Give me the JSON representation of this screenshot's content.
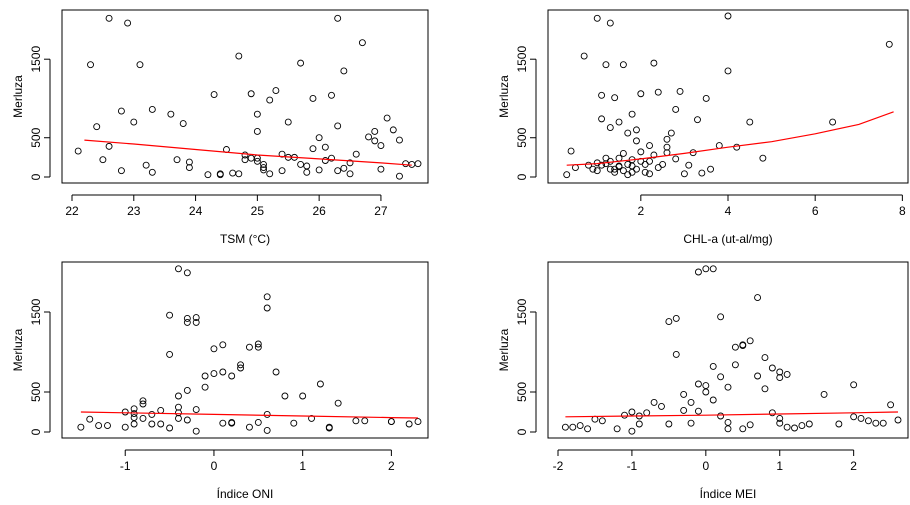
{
  "chart_data": [
    {
      "type": "scatter",
      "xlabel": "TSM (°C)",
      "ylabel": "Merluza",
      "xlim": [
        22,
        27.6
      ],
      "ylim": [
        0,
        2050
      ],
      "xticks": [
        "22",
        "23",
        "24",
        "25",
        "26",
        "27"
      ],
      "yticks": [
        "0",
        "500",
        "1500"
      ],
      "fit_color": "#ff0000",
      "fit": {
        "x": [
          22.2,
          23,
          24,
          25,
          26,
          27,
          27.5
        ],
        "y": [
          470,
          420,
          350,
          280,
          230,
          180,
          150
        ]
      },
      "x": [
        22.1,
        22.3,
        22.4,
        22.5,
        22.6,
        22.6,
        22.8,
        22.8,
        22.9,
        23.0,
        23.1,
        23.2,
        23.3,
        23.3,
        23.6,
        23.7,
        23.8,
        23.9,
        23.9,
        24.2,
        24.3,
        24.4,
        24.4,
        24.5,
        24.6,
        24.7,
        24.7,
        24.8,
        24.8,
        24.9,
        24.9,
        25.0,
        25.0,
        25.0,
        25.0,
        25.1,
        25.1,
        25.1,
        25.2,
        25.2,
        25.3,
        25.4,
        25.4,
        25.5,
        25.6,
        25.7,
        25.7,
        25.8,
        25.8,
        25.9,
        25.9,
        26.0,
        26.0,
        26.1,
        26.1,
        26.2,
        26.2,
        26.3,
        26.3,
        26.3,
        26.4,
        26.4,
        26.5,
        26.5,
        26.6,
        26.7,
        26.8,
        26.9,
        27.0,
        27.0,
        27.1,
        27.2,
        27.3,
        27.3,
        27.4,
        27.5,
        27.6,
        26.9,
        25.5
      ],
      "y": [
        330,
        1430,
        640,
        220,
        390,
        2020,
        80,
        840,
        1960,
        700,
        1430,
        150,
        860,
        60,
        800,
        220,
        680,
        190,
        120,
        30,
        1050,
        40,
        30,
        350,
        50,
        40,
        1540,
        280,
        220,
        1060,
        240,
        800,
        580,
        240,
        200,
        160,
        90,
        120,
        980,
        40,
        1100,
        80,
        290,
        700,
        250,
        1450,
        160,
        140,
        60,
        1000,
        360,
        90,
        500,
        210,
        380,
        1040,
        240,
        80,
        650,
        2020,
        110,
        1350,
        40,
        180,
        290,
        1710,
        510,
        580,
        100,
        400,
        750,
        600,
        10,
        470,
        170,
        160,
        170,
        460,
        250
      ]
    },
    {
      "type": "scatter",
      "xlabel": "CHL-a (ut-al/mg)",
      "ylabel": "Merluza",
      "xlim": [
        0.1,
        7.9
      ],
      "ylim": [
        0,
        2050
      ],
      "xticks": [
        "2",
        "4",
        "6",
        "8"
      ],
      "yticks": [
        "0",
        "500",
        "1500"
      ],
      "fit_color": "#ff0000",
      "fit": {
        "x": [
          0.3,
          1,
          2,
          3,
          4,
          5,
          6,
          7,
          7.8
        ],
        "y": [
          150,
          170,
          230,
          300,
          380,
          450,
          550,
          670,
          830
        ]
      },
      "x": [
        0.3,
        0.4,
        0.5,
        0.7,
        0.8,
        0.9,
        1.0,
        1.0,
        1.1,
        1.1,
        1.1,
        1.2,
        1.2,
        1.3,
        1.3,
        1.3,
        1.4,
        1.4,
        1.4,
        1.5,
        1.5,
        1.5,
        1.6,
        1.6,
        1.6,
        1.7,
        1.7,
        1.7,
        1.8,
        1.8,
        1.8,
        1.9,
        1.9,
        1.9,
        2.0,
        2.0,
        2.0,
        2.1,
        2.1,
        2.2,
        2.2,
        2.3,
        2.3,
        2.4,
        2.4,
        2.5,
        2.6,
        2.6,
        2.7,
        2.8,
        2.8,
        2.9,
        3.0,
        3.1,
        3.2,
        3.3,
        3.5,
        3.6,
        3.8,
        4.0,
        4.0,
        4.2,
        4.5,
        4.8,
        6.4,
        7.7,
        1.2,
        1.5,
        2.2,
        1.0,
        1.8,
        2.6,
        3.4,
        1.3
      ],
      "y": [
        30,
        330,
        120,
        1540,
        150,
        100,
        2020,
        80,
        740,
        1040,
        150,
        1430,
        240,
        1960,
        630,
        200,
        1010,
        60,
        100,
        700,
        130,
        240,
        1430,
        300,
        80,
        560,
        160,
        30,
        800,
        220,
        60,
        600,
        460,
        100,
        1060,
        320,
        200,
        160,
        60,
        40,
        200,
        1450,
        280,
        1080,
        120,
        160,
        480,
        380,
        560,
        230,
        860,
        1090,
        40,
        150,
        310,
        730,
        1000,
        100,
        400,
        2050,
        1350,
        380,
        700,
        240,
        700,
        1690,
        170,
        140,
        400,
        180,
        140,
        310,
        50,
        100
      ]
    },
    {
      "type": "scatter",
      "xlabel": "Índice ONI",
      "ylabel": "Merluza",
      "xlim": [
        -1.6,
        2.3
      ],
      "ylim": [
        0,
        2050
      ],
      "xticks": [
        "-1",
        "0",
        "1",
        "2"
      ],
      "yticks": [
        "0",
        "500",
        "1500"
      ],
      "fit_color": "#ff0000",
      "fit": {
        "x": [
          -1.5,
          -1,
          0,
          1,
          2,
          2.3
        ],
        "y": [
          250,
          240,
          220,
          200,
          180,
          175
        ]
      },
      "x": [
        -1.5,
        -1.4,
        -1.3,
        -1.2,
        -1.0,
        -1.0,
        -0.9,
        -0.9,
        -0.9,
        -0.8,
        -0.8,
        -0.8,
        -0.7,
        -0.7,
        -0.6,
        -0.6,
        -0.5,
        -0.5,
        -0.5,
        -0.4,
        -0.4,
        -0.4,
        -0.4,
        -0.3,
        -0.3,
        -0.3,
        -0.3,
        -0.3,
        -0.2,
        -0.2,
        -0.2,
        -0.1,
        -0.1,
        0.0,
        0.0,
        0.1,
        0.1,
        0.1,
        0.2,
        0.2,
        0.3,
        0.3,
        0.4,
        0.4,
        0.5,
        0.5,
        0.5,
        0.6,
        0.6,
        0.6,
        0.7,
        0.8,
        0.9,
        1.0,
        1.1,
        1.2,
        1.3,
        1.4,
        1.6,
        1.7,
        2.0,
        2.2,
        2.3,
        2.0,
        1.3,
        0.6,
        -0.2,
        -0.9,
        -0.4,
        0.2
      ],
      "y": [
        60,
        160,
        80,
        80,
        250,
        60,
        290,
        100,
        180,
        350,
        390,
        170,
        220,
        100,
        270,
        100,
        1460,
        970,
        50,
        2040,
        450,
        310,
        240,
        1990,
        1420,
        1370,
        150,
        520,
        1430,
        1370,
        280,
        700,
        560,
        730,
        1040,
        110,
        750,
        1090,
        110,
        700,
        800,
        840,
        1060,
        60,
        1100,
        1060,
        120,
        1690,
        1550,
        20,
        750,
        450,
        110,
        450,
        170,
        600,
        60,
        360,
        140,
        140,
        130,
        100,
        130,
        130,
        50,
        220,
        10,
        230,
        170,
        120
      ]
    },
    {
      "type": "scatter",
      "xlabel": "Índice MEI",
      "ylabel": "Merluza",
      "xlim": [
        -2.0,
        2.6
      ],
      "ylim": [
        0,
        2050
      ],
      "xticks": [
        "-2",
        "-1",
        "0",
        "1",
        "2"
      ],
      "yticks": [
        "0",
        "500",
        "1500"
      ],
      "fit_color": "#ff0000",
      "fit": {
        "x": [
          -1.9,
          -1,
          0,
          1,
          2,
          2.6
        ],
        "y": [
          190,
          200,
          210,
          225,
          240,
          250
        ]
      },
      "x": [
        -1.9,
        -1.8,
        -1.7,
        -1.6,
        -1.5,
        -1.4,
        -1.2,
        -1.1,
        -1.0,
        -0.9,
        -0.9,
        -0.8,
        -0.7,
        -0.6,
        -0.5,
        -0.5,
        -0.4,
        -0.4,
        -0.3,
        -0.3,
        -0.2,
        -0.2,
        -0.1,
        -0.1,
        -0.1,
        0.0,
        0.0,
        0.0,
        0.1,
        0.1,
        0.1,
        0.2,
        0.2,
        0.2,
        0.3,
        0.3,
        0.4,
        0.4,
        0.5,
        0.5,
        0.5,
        0.6,
        0.6,
        0.7,
        0.7,
        0.8,
        0.8,
        0.9,
        0.9,
        1.0,
        1.0,
        1.0,
        1.1,
        1.1,
        1.2,
        1.3,
        1.4,
        1.6,
        1.8,
        2.0,
        2.0,
        2.1,
        2.2,
        2.3,
        2.4,
        2.5,
        2.6,
        -1.0,
        0.3,
        1.0
      ],
      "y": [
        60,
        60,
        80,
        40,
        160,
        140,
        40,
        210,
        250,
        200,
        100,
        240,
        370,
        320,
        100,
        1380,
        970,
        1420,
        270,
        470,
        370,
        110,
        2000,
        260,
        600,
        2040,
        500,
        580,
        400,
        2040,
        820,
        200,
        690,
        1440,
        120,
        560,
        840,
        1060,
        1080,
        1090,
        40,
        1140,
        90,
        1680,
        700,
        540,
        930,
        240,
        800,
        750,
        680,
        110,
        60,
        720,
        50,
        80,
        100,
        470,
        100,
        590,
        190,
        170,
        140,
        110,
        110,
        340,
        150,
        10,
        40,
        170
      ]
    }
  ]
}
